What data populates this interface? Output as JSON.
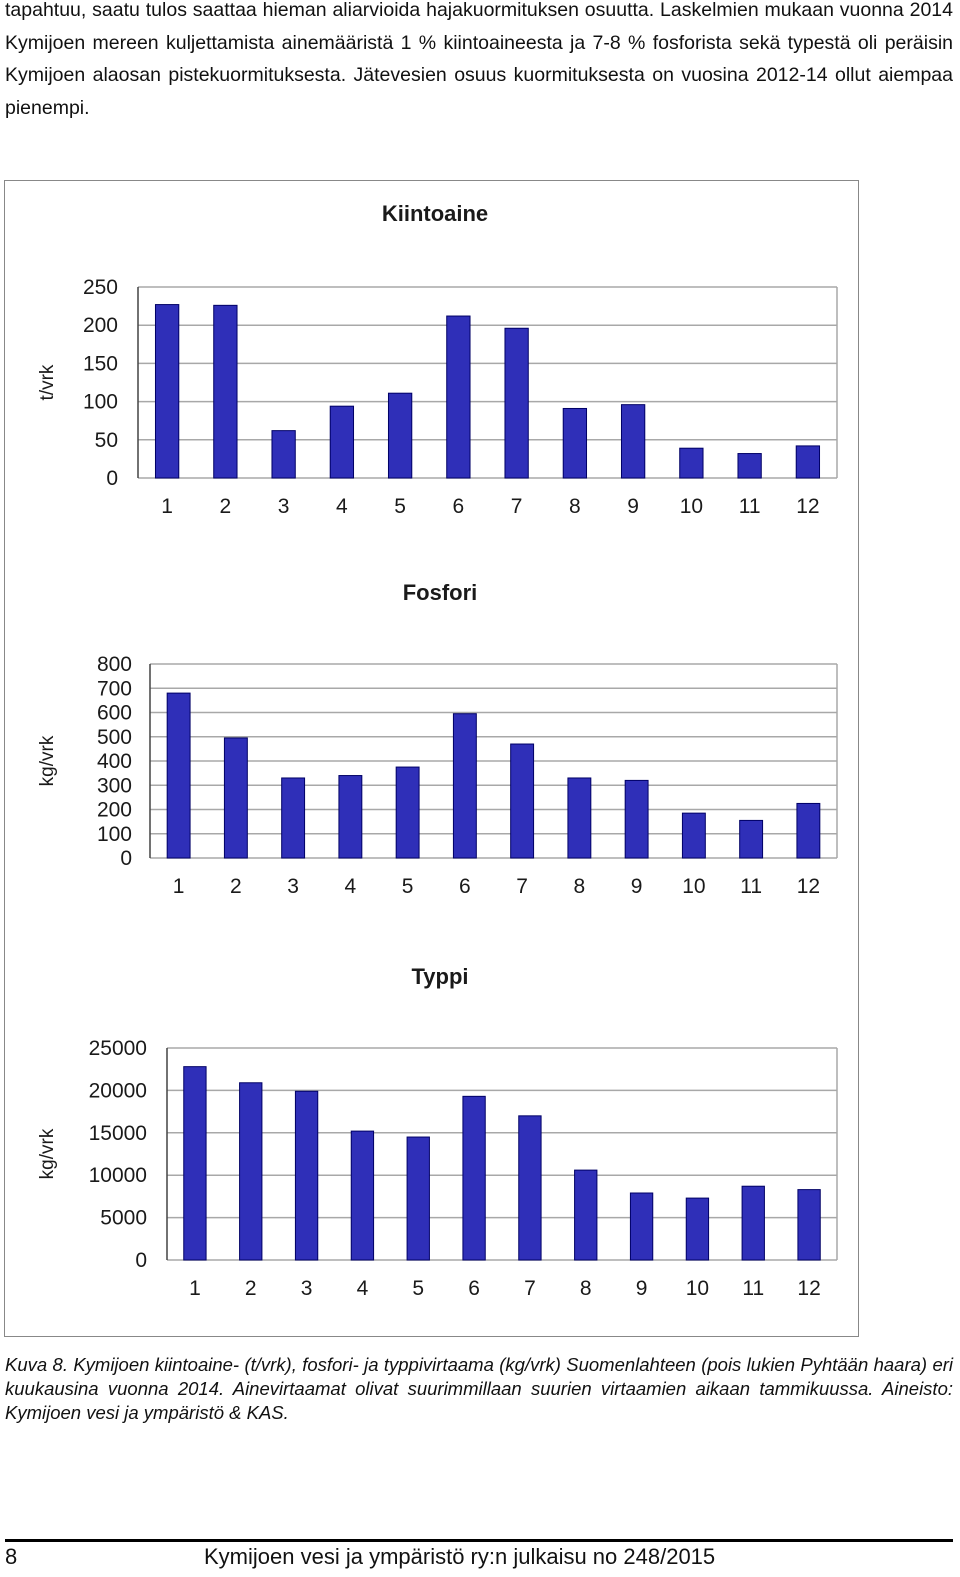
{
  "intro_text": "tapahtuu, saatu tulos saattaa hieman aliarvioida hajakuormituksen osuutta. Laskelmien mukaan vuonna 2014 Kymijoen mereen kuljettamista ainemääristä 1 % kiintoaineesta ja 7-8 % fosforista sekä typestä oli peräisin Kymijoen alaosan pistekuormituksesta. Jätevesien osuus kuormituksesta on vuosina 2012-14 ollut aiempaa pienempi.",
  "caption": "Kuva 8. Kymijoen kiintoaine- (t/vrk), fosfori- ja typpivirtaama (kg/vrk) Suomenlahteen (pois lukien Pyhtään haara) eri kuukausina vuonna 2014. Ainevirtaamat olivat suurimmillaan suurien virtaamien aikaan tammikuussa. Aineisto: Kymijoen vesi ja ympäristö & KAS.",
  "footer": {
    "page_number": "8",
    "publication": "Kymijoen vesi ja ympäristö ry:n julkaisu no 248/2015"
  },
  "colors": {
    "bar_fill": "#2f2fb8",
    "bar_edge": "#000066",
    "grid": "#a8a8a8"
  },
  "chart_data": [
    {
      "type": "bar",
      "title": "Kiintoaine",
      "xlabel": "",
      "ylabel": "t/vrk",
      "categories": [
        "1",
        "2",
        "3",
        "4",
        "5",
        "6",
        "7",
        "8",
        "9",
        "10",
        "11",
        "12"
      ],
      "values": [
        227,
        226,
        62,
        94,
        111,
        212,
        196,
        91,
        96,
        39,
        32,
        42
      ],
      "ylim": [
        0,
        250
      ],
      "yticks": [
        "0",
        "50",
        "100",
        "150",
        "200",
        "250"
      ],
      "grid": true
    },
    {
      "type": "bar",
      "title": "Fosfori",
      "xlabel": "",
      "ylabel": "kg/vrk",
      "categories": [
        "1",
        "2",
        "3",
        "4",
        "5",
        "6",
        "7",
        "8",
        "9",
        "10",
        "11",
        "12"
      ],
      "values": [
        680,
        495,
        330,
        340,
        375,
        595,
        470,
        330,
        320,
        185,
        155,
        225
      ],
      "ylim": [
        0,
        800
      ],
      "yticks": [
        "0",
        "100",
        "200",
        "300",
        "400",
        "500",
        "600",
        "700",
        "800"
      ],
      "grid": true
    },
    {
      "type": "bar",
      "title": "Typpi",
      "xlabel": "",
      "ylabel": "kg/vrk",
      "categories": [
        "1",
        "2",
        "3",
        "4",
        "5",
        "6",
        "7",
        "8",
        "9",
        "10",
        "11",
        "12"
      ],
      "values": [
        22800,
        20900,
        19900,
        15200,
        14500,
        19300,
        17000,
        10600,
        7900,
        7300,
        8700,
        8300
      ],
      "ylim": [
        0,
        25000
      ],
      "yticks": [
        "0",
        "5000",
        "10000",
        "15000",
        "20000",
        "25000"
      ],
      "grid": true
    }
  ]
}
